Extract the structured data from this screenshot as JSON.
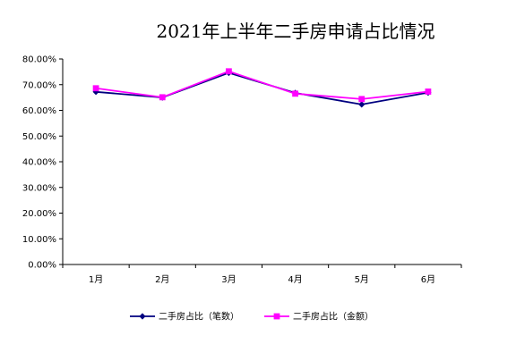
{
  "chart_data": {
    "type": "line",
    "title": "2021年上半年二手房申请占比情况",
    "categories": [
      "1月",
      "2月",
      "3月",
      "4月",
      "5月",
      "6月"
    ],
    "ylim": [
      0,
      80
    ],
    "yticks": [
      "0.00%",
      "10.00%",
      "20.00%",
      "30.00%",
      "40.00%",
      "50.00%",
      "60.00%",
      "70.00%",
      "80.00%"
    ],
    "grid": false,
    "legend_position": "bottom",
    "series": [
      {
        "name": "二手房占比（笔数）",
        "values": [
          67.2,
          65.0,
          74.6,
          66.8,
          62.3,
          66.9
        ],
        "color": "#000080",
        "marker": "diamond"
      },
      {
        "name": "二手房占比（金额）",
        "values": [
          68.6,
          65.1,
          75.2,
          66.5,
          64.4,
          67.3
        ],
        "color": "#FF00FF",
        "marker": "square"
      }
    ]
  }
}
